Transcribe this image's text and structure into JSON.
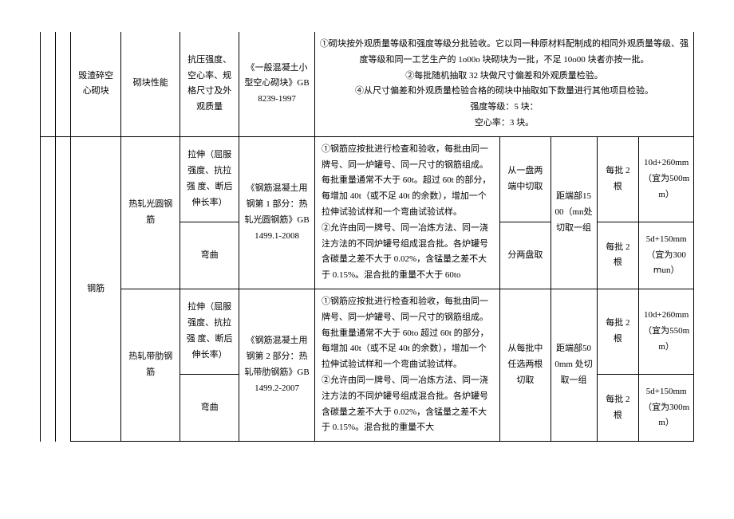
{
  "row1": {
    "c1": "毁渣碎空心砌块",
    "c2": "砌块性能",
    "c3": "抗压强度、空心率、规格尺寸及外观质量",
    "c4": "《一般混凝土小型空心砌块》GB8239-1997",
    "c5": "①砌块按外观质量等级和强度等级分批验收。它以同一种原材料配制成的相同外观质量等级、强度等级和同一工艺生产的 1o00o 块砌块为一批，不足 10o00 块者亦按一批。\n②每批随机抽取 32 块做尺寸偏差和外观质量检验。\n④从尺寸偏差和外观质量检验合格的砌块中抽取如下数量进行其他项目检验。\n强度等级：5 块：\n空心率：3 块。"
  },
  "steel": {
    "label": "钢筋",
    "rebar1": {
      "name": "热轧光圆钢筋",
      "test1": "拉伸（屈服强度、抗拉强 度、断后伸长率）",
      "test2": "弯曲",
      "std": "《钢筋混凝土用钢第 1 部分：热轧光圆钢筋》GB1499.1-2008",
      "desc": "①钢筋应按批进行检查和验收，每批由同一牌号、同一炉罐号、同一尺寸的钢筋组成。每批重量通常不大于 60t。超过 60t 的部分，每增加 40t（或不足 40t 的余数），增加一个拉伸试验试样和一个弯曲试验试样。\n②允许由同一牌号、同一冶炼方法、同一浇注方法的不同炉罐号组成混合批。各炉罐号含碳量之差不大于 0.02%，含锰量之差不大于 0.15%。混合批的重量不大于 60to",
      "sample1": "从一盘两端中切取",
      "sample2": "分两盘取",
      "pos": "距端部1500（mn处切取一组",
      "qty1": "每批 2 根",
      "qty2": "每批 2 根",
      "len1": "10d+260mm（宜为500mm）",
      "len2": "5d+150mm（宜为300ⅿun）"
    },
    "rebar2": {
      "name": "热轧带肋钢筋",
      "test1": "拉伸（屈服强度、抗拉强 度、断后伸长率）",
      "test2": "弯曲",
      "std": "《钢筋混凝土用钢第 2 部分：热轧带肋钢筋》GB1499.2-2007",
      "desc": "①钢筋应按批进行检查和验收，每批由同一牌号、同一炉罐号、同一尺寸的钢筋组成。每批重量通常不大于 60to 超过 60t 的部分，每增加 40t（或不足 40t 的余数），增加一个拉伸试验试样和一个弯曲试验试样。\n②允许由同一牌号、同一冶炼方法、同一浇注方法的不同炉罐号组成混合批。各炉罐号含碳量之差不大于 0.02%，含锰量之差不大于 0.15%。混合批的重量不大",
      "sample": "从每批中任选两根切取",
      "pos": "距端部500mm 处切取一组",
      "qty1": "每批 2 根",
      "qty2": "每批 2 根",
      "len1": "10d+260mm（宜为550mm）",
      "len2": "5d+150mm（宜为300mm）"
    }
  }
}
